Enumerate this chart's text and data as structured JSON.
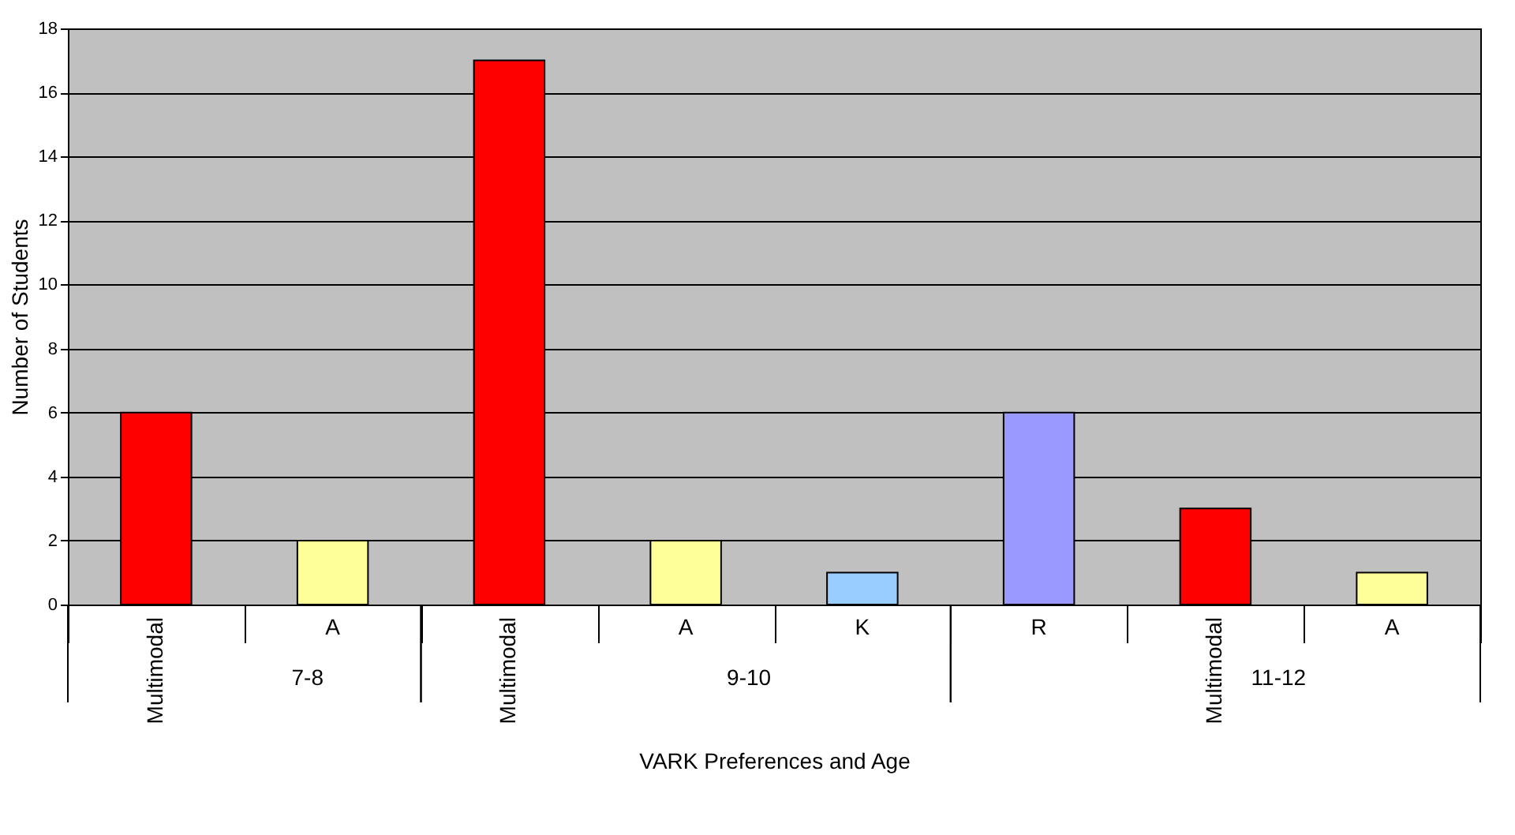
{
  "chart_data": {
    "type": "bar",
    "xlabel": "VARK Preferences and Age",
    "ylabel": "Number of Students",
    "categories": [
      "Multimodal",
      "A",
      "Multimodal",
      "A",
      "K",
      "R",
      "Multimodal",
      "A"
    ],
    "values": [
      6,
      2,
      17,
      2,
      1,
      6,
      3,
      1
    ],
    "colors": [
      "#ff0000",
      "#ffff99",
      "#ff0000",
      "#ffff99",
      "#99ccff",
      "#9999ff",
      "#ff0000",
      "#ffff99"
    ],
    "ylim": [
      0,
      18
    ],
    "yticks": [
      0,
      2,
      4,
      6,
      8,
      10,
      12,
      14,
      16,
      18
    ],
    "grid": "y",
    "annotations": [
      "7-8",
      "9-10",
      "11-12"
    ]
  }
}
